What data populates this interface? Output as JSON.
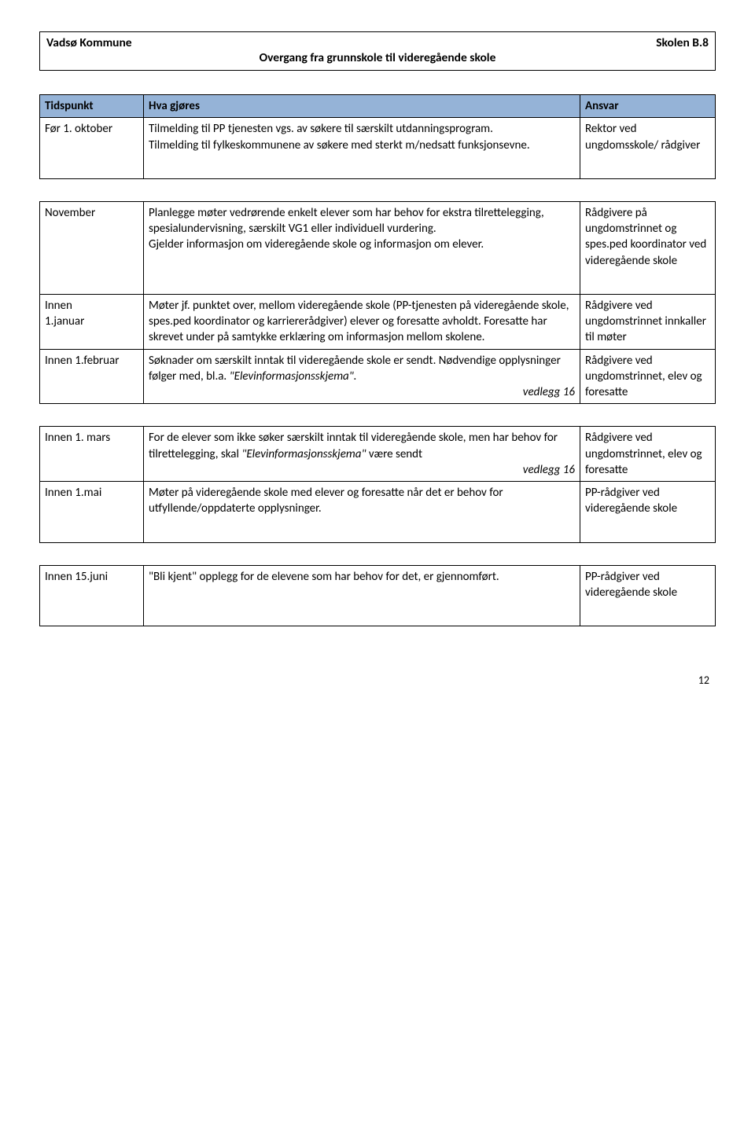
{
  "header": {
    "left": "Vadsø Kommune",
    "right": "Skolen B.8",
    "subtitle": "Overgang fra grunnskole til videregående skole"
  },
  "table_headers": {
    "time": "Tidspunkt",
    "what": "Hva gjøres",
    "resp": "Ansvar"
  },
  "t1": {
    "time": "Før 1. oktober",
    "what": "Tilmelding til PP tjenesten vgs. av søkere til særskilt utdanningsprogram.\nTilmelding til fylkeskommunene av søkere med sterkt m/nedsatt funksjonsevne.",
    "resp": "Rektor ved ungdomsskole/ rådgiver"
  },
  "t2": {
    "r1": {
      "time": "November",
      "what": "Planlegge møter vedrørende enkelt elever som har behov for ekstra tilrettelegging, spesialundervisning, særskilt VG1 eller individuell vurdering.\nGjelder informasjon om videregående skole og informasjon om elever.",
      "resp": "Rådgivere på ungdomstrinnet og spes.ped koordinator ved videregående skole"
    },
    "r2": {
      "time": "Innen\n 1.januar",
      "what": "Møter jf. punktet over, mellom videregående skole (PP-tjenesten på videregående skole, spes.ped koordinator og karriererådgiver) elever og foresatte avholdt. Foresatte har skrevet under på samtykke erklæring om informasjon mellom skolene.",
      "resp": "Rådgivere ved ungdomstrinnet innkaller til møter"
    },
    "r3": {
      "time": "Innen 1.februar",
      "what_main": "Søknader om særskilt inntak til videregående skole er sendt. Nødvendige opplysninger følger med, bl.a. ",
      "what_quote": "\"Elevinformasjonsskjema\".",
      "vedlegg": "vedlegg 16",
      "resp": "Rådgivere ved ungdomstrinnet, elev og foresatte"
    }
  },
  "t3": {
    "r1": {
      "time": "Innen 1. mars",
      "what_a": "For de elever som ikke søker særskilt inntak til videregående skole, men har behov for tilrettelegging, skal ",
      "what_i": "\"Elevinformasjonsskjema\"",
      "what_b": " være sendt",
      "vedlegg": "vedlegg 16",
      "resp": "Rådgivere ved ungdomstrinnet, elev og foresatte"
    },
    "r2": {
      "time": "Innen 1.mai",
      "what": "Møter på videregående skole med elever og foresatte når det er behov for utfyllende/oppdaterte opplysninger.",
      "resp": "PP-rådgiver ved videregående skole"
    }
  },
  "t4": {
    "time": "Innen 15.juni",
    "what": "\"Bli kjent\" opplegg for de elevene som har behov for det, er gjennomført.",
    "resp": "PP-rådgiver ved videregående skole"
  },
  "page_number": "12",
  "colors": {
    "header_fill": "#95b3d7",
    "border": "#000000",
    "background": "#ffffff",
    "text": "#000000"
  }
}
